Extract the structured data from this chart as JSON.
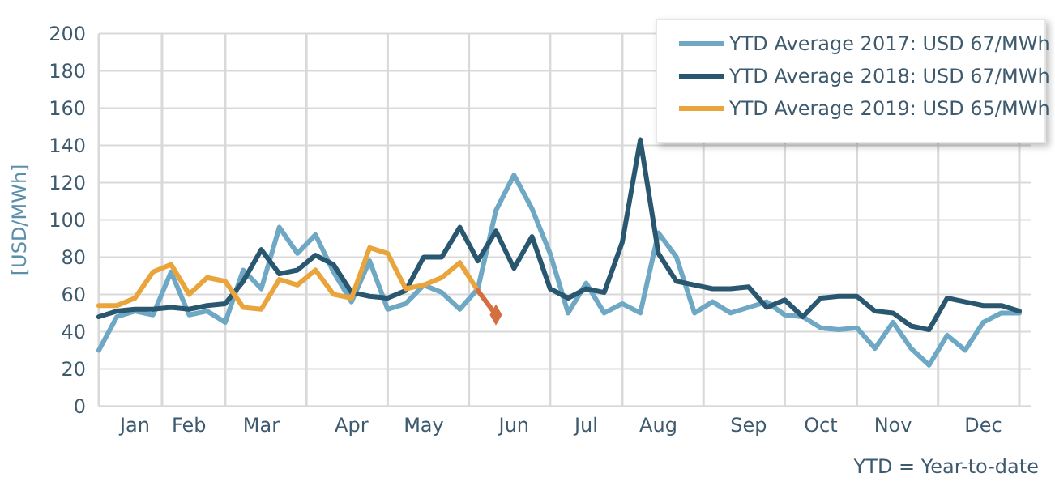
{
  "chart_data": {
    "type": "line",
    "ylabel": "[USD/MWh]",
    "annotations": [
      "YTD = Year-to-date"
    ],
    "categories": [
      null,
      null,
      "Jan",
      null,
      null,
      "Feb",
      null,
      null,
      null,
      "Mar",
      null,
      null,
      null,
      null,
      "Apr",
      null,
      null,
      null,
      "May",
      null,
      null,
      null,
      null,
      "Jun",
      null,
      null,
      null,
      "Jul",
      null,
      null,
      null,
      "Aug",
      null,
      null,
      null,
      null,
      "Sep",
      null,
      null,
      null,
      "Oct",
      null,
      null,
      null,
      "Nov",
      null,
      null,
      null,
      null,
      "Dec",
      null,
      null
    ],
    "ylim": [
      0,
      200
    ],
    "yticks": [
      0,
      20,
      40,
      60,
      80,
      100,
      120,
      140,
      160,
      180,
      200
    ],
    "grid": true,
    "legend": "top right",
    "line_style": "solid",
    "series": [
      {
        "name": "YTD Average 2017: USD 67/MWh",
        "color": "#6fa8c4",
        "values": [
          30,
          48,
          51,
          49,
          72,
          49,
          51,
          45,
          73,
          63,
          96,
          82,
          92,
          72,
          56,
          78,
          52,
          55,
          65,
          61,
          52,
          63,
          105,
          124,
          106,
          82,
          50,
          66,
          50,
          55,
          50,
          93,
          80,
          50,
          56,
          50,
          53,
          56,
          49,
          48,
          42,
          41,
          42,
          31,
          45,
          31,
          22,
          38,
          30,
          45,
          50,
          50
        ]
      },
      {
        "name": "YTD Average 2018: USD 67/MWh",
        "color": "#2a5770",
        "values": [
          48,
          51,
          52,
          52,
          53,
          52,
          54,
          55,
          67,
          84,
          71,
          73,
          81,
          76,
          61,
          59,
          58,
          62,
          80,
          80,
          96,
          78,
          94,
          74,
          91,
          63,
          58,
          63,
          61,
          88,
          143,
          82,
          67,
          65,
          63,
          63,
          64,
          53,
          57,
          48,
          58,
          59,
          59,
          51,
          50,
          43,
          41,
          58,
          56,
          54,
          54,
          51
        ]
      },
      {
        "name": "YTD Average 2019: USD 65/MWh",
        "color": "#e9a43c",
        "values": [
          54,
          54,
          58,
          72,
          76,
          60,
          69,
          67,
          53,
          52,
          68,
          65,
          73,
          60,
          58,
          85,
          82,
          63,
          65,
          69,
          77,
          62,
          null,
          null,
          null,
          null,
          null,
          null,
          null,
          null,
          null,
          null,
          null,
          null,
          null,
          null,
          null,
          null,
          null,
          null,
          null,
          null,
          null,
          null,
          null,
          null,
          null,
          null,
          null,
          null,
          null,
          null
        ]
      },
      {
        "type": "line",
        "color": "#d4703f",
        "values": [
          null,
          null,
          null,
          null,
          null,
          null,
          null,
          null,
          null,
          null,
          null,
          null,
          null,
          null,
          null,
          null,
          null,
          null,
          null,
          null,
          null,
          62,
          49,
          null,
          null,
          null,
          null,
          null,
          null,
          null,
          null,
          null,
          null,
          null,
          null,
          null,
          null,
          null,
          null,
          null,
          null,
          null,
          null,
          null,
          null,
          null,
          null,
          null,
          null,
          null,
          null,
          null
        ]
      },
      {
        "type": "scatter",
        "color": "#d4703f",
        "marker": "diamond",
        "values": [
          null,
          null,
          null,
          null,
          null,
          null,
          null,
          null,
          null,
          null,
          null,
          null,
          null,
          null,
          null,
          null,
          null,
          null,
          null,
          null,
          null,
          null,
          49,
          null,
          null,
          null,
          null,
          null,
          null,
          null,
          null,
          null,
          null,
          null,
          null,
          null,
          null,
          null,
          null,
          null,
          null,
          null,
          null,
          null,
          null,
          null,
          null,
          null,
          null,
          null,
          null,
          null
        ]
      }
    ]
  }
}
